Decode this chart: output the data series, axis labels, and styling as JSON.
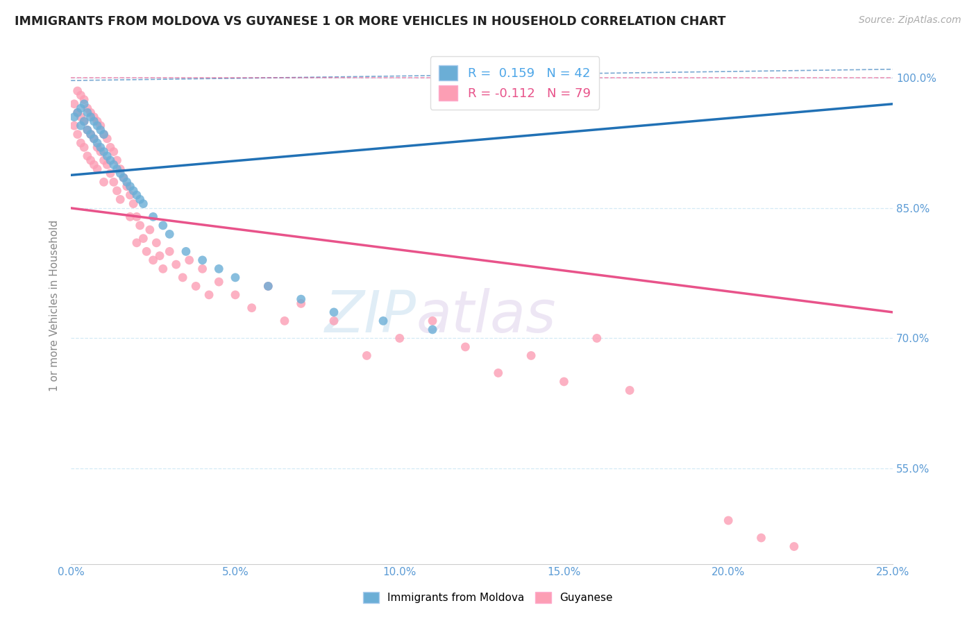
{
  "title": "IMMIGRANTS FROM MOLDOVA VS GUYANESE 1 OR MORE VEHICLES IN HOUSEHOLD CORRELATION CHART",
  "source": "Source: ZipAtlas.com",
  "ylabel_label": "1 or more Vehicles in Household",
  "legend_label1": "Immigrants from Moldova",
  "legend_label2": "Guyanese",
  "r1": 0.159,
  "n1": 42,
  "r2": -0.112,
  "n2": 79,
  "color_moldova": "#6baed6",
  "color_guyanese": "#fc9eb4",
  "color_moldova_line": "#2171b5",
  "color_guyanese_line": "#e8538a",
  "watermark_zip": "ZIP",
  "watermark_atlas": "atlas",
  "xmin": 0.0,
  "xmax": 0.25,
  "ymin": 0.44,
  "ymax": 1.035,
  "yticks": [
    0.55,
    0.7,
    0.85,
    1.0
  ],
  "ytick_labels": [
    "55.0%",
    "70.0%",
    "85.0%",
    "100.0%"
  ],
  "xticks": [
    0.0,
    0.05,
    0.1,
    0.15,
    0.2,
    0.25
  ],
  "xtick_labels": [
    "0.0%",
    "5.0%",
    "10.0%",
    "15.0%",
    "20.0%",
    "25.0%"
  ],
  "moldova_scatter_x": [
    0.001,
    0.002,
    0.003,
    0.003,
    0.004,
    0.004,
    0.005,
    0.005,
    0.006,
    0.006,
    0.007,
    0.007,
    0.008,
    0.008,
    0.009,
    0.009,
    0.01,
    0.01,
    0.011,
    0.012,
    0.013,
    0.014,
    0.015,
    0.016,
    0.017,
    0.018,
    0.019,
    0.02,
    0.021,
    0.022,
    0.025,
    0.028,
    0.03,
    0.035,
    0.04,
    0.045,
    0.05,
    0.06,
    0.07,
    0.08,
    0.095,
    0.11
  ],
  "moldova_scatter_y": [
    0.955,
    0.96,
    0.945,
    0.965,
    0.95,
    0.97,
    0.94,
    0.96,
    0.935,
    0.955,
    0.93,
    0.95,
    0.925,
    0.945,
    0.92,
    0.94,
    0.915,
    0.935,
    0.91,
    0.905,
    0.9,
    0.895,
    0.89,
    0.885,
    0.88,
    0.875,
    0.87,
    0.865,
    0.86,
    0.855,
    0.84,
    0.83,
    0.82,
    0.8,
    0.79,
    0.78,
    0.77,
    0.76,
    0.745,
    0.73,
    0.72,
    0.71
  ],
  "guyanese_scatter_x": [
    0.001,
    0.001,
    0.002,
    0.002,
    0.002,
    0.003,
    0.003,
    0.003,
    0.004,
    0.004,
    0.004,
    0.005,
    0.005,
    0.005,
    0.006,
    0.006,
    0.006,
    0.007,
    0.007,
    0.007,
    0.008,
    0.008,
    0.008,
    0.009,
    0.009,
    0.01,
    0.01,
    0.01,
    0.011,
    0.011,
    0.012,
    0.012,
    0.013,
    0.013,
    0.014,
    0.014,
    0.015,
    0.015,
    0.016,
    0.017,
    0.018,
    0.018,
    0.019,
    0.02,
    0.02,
    0.021,
    0.022,
    0.023,
    0.024,
    0.025,
    0.026,
    0.027,
    0.028,
    0.03,
    0.032,
    0.034,
    0.036,
    0.038,
    0.04,
    0.042,
    0.045,
    0.05,
    0.055,
    0.06,
    0.065,
    0.07,
    0.08,
    0.09,
    0.1,
    0.11,
    0.12,
    0.13,
    0.14,
    0.15,
    0.16,
    0.17,
    0.2,
    0.21,
    0.22
  ],
  "guyanese_scatter_y": [
    0.97,
    0.945,
    0.985,
    0.96,
    0.935,
    0.98,
    0.955,
    0.925,
    0.975,
    0.95,
    0.92,
    0.965,
    0.94,
    0.91,
    0.96,
    0.935,
    0.905,
    0.955,
    0.93,
    0.9,
    0.95,
    0.92,
    0.895,
    0.945,
    0.915,
    0.935,
    0.905,
    0.88,
    0.93,
    0.9,
    0.92,
    0.89,
    0.915,
    0.88,
    0.905,
    0.87,
    0.895,
    0.86,
    0.885,
    0.875,
    0.865,
    0.84,
    0.855,
    0.84,
    0.81,
    0.83,
    0.815,
    0.8,
    0.825,
    0.79,
    0.81,
    0.795,
    0.78,
    0.8,
    0.785,
    0.77,
    0.79,
    0.76,
    0.78,
    0.75,
    0.765,
    0.75,
    0.735,
    0.76,
    0.72,
    0.74,
    0.72,
    0.68,
    0.7,
    0.72,
    0.69,
    0.66,
    0.68,
    0.65,
    0.7,
    0.64,
    0.49,
    0.47,
    0.46
  ],
  "moldova_trend_x": [
    0.0,
    0.25
  ],
  "moldova_trend_y": [
    0.888,
    0.97
  ],
  "guyanese_trend_x": [
    0.0,
    0.25
  ],
  "guyanese_trend_y": [
    0.85,
    0.73
  ]
}
